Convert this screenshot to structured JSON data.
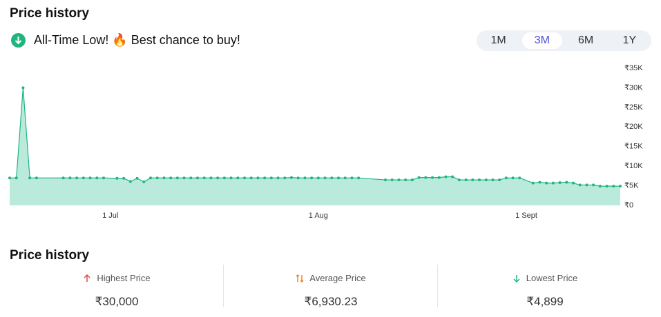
{
  "header": {
    "title": "Price history",
    "banner": "All-Time Low! 🔥 Best chance to buy!"
  },
  "tabs": [
    "1M",
    "3M",
    "6M",
    "1Y"
  ],
  "active_tab": "3M",
  "chart_data": {
    "type": "area",
    "color": "#1fb57f",
    "fill": "#b9eadb",
    "x": [
      "06-16",
      "06-17",
      "06-18",
      "06-19",
      "06-20",
      "06-24",
      "06-25",
      "06-26",
      "06-27",
      "06-28",
      "06-29",
      "06-30",
      "07-02",
      "07-03",
      "07-04",
      "07-05",
      "07-06",
      "07-07",
      "07-08",
      "07-09",
      "07-10",
      "07-11",
      "07-12",
      "07-13",
      "07-14",
      "07-15",
      "07-16",
      "07-17",
      "07-18",
      "07-19",
      "07-20",
      "07-21",
      "07-22",
      "07-23",
      "07-24",
      "07-25",
      "07-26",
      "07-27",
      "07-28",
      "07-29",
      "07-30",
      "07-31",
      "08-01",
      "08-02",
      "08-03",
      "08-04",
      "08-05",
      "08-06",
      "08-07",
      "08-11",
      "08-12",
      "08-13",
      "08-14",
      "08-15",
      "08-16",
      "08-17",
      "08-18",
      "08-19",
      "08-20",
      "08-21",
      "08-22",
      "08-23",
      "08-24",
      "08-25",
      "08-26",
      "08-27",
      "08-28",
      "08-29",
      "08-30",
      "08-31",
      "09-02",
      "09-03",
      "09-04",
      "09-05",
      "09-06",
      "09-07",
      "09-08",
      "09-09",
      "09-10",
      "09-11",
      "09-12",
      "09-13",
      "09-14",
      "09-15"
    ],
    "values": [
      7000,
      7000,
      30000,
      7000,
      7000,
      7000,
      7000,
      7000,
      7000,
      7000,
      7000,
      7000,
      6900,
      6900,
      6100,
      6900,
      6000,
      7000,
      7000,
      7000,
      7000,
      7000,
      7000,
      7000,
      7000,
      7000,
      7000,
      7000,
      7000,
      7000,
      7000,
      7000,
      7000,
      7000,
      7000,
      7000,
      7000,
      7000,
      7100,
      7000,
      7000,
      7000,
      7000,
      7000,
      7000,
      7000,
      7000,
      7000,
      7000,
      6500,
      6500,
      6500,
      6500,
      6500,
      7100,
      7100,
      7100,
      7100,
      7300,
      7300,
      6500,
      6500,
      6500,
      6500,
      6500,
      6500,
      6500,
      7000,
      7000,
      7000,
      5700,
      5900,
      5700,
      5700,
      5800,
      5900,
      5700,
      5200,
      5200,
      5200,
      4899,
      4899,
      4899,
      4899
    ],
    "xlim": [
      "06-16",
      "09-15"
    ],
    "xticks": [
      {
        "value": "07-01",
        "label": "1 Jul"
      },
      {
        "value": "08-01",
        "label": "1 Aug"
      },
      {
        "value": "09-01",
        "label": "1 Sept"
      }
    ],
    "ylim": [
      0,
      35000
    ],
    "yticks": [
      {
        "value": 0,
        "label": "₹0"
      },
      {
        "value": 5000,
        "label": "₹5K"
      },
      {
        "value": 10000,
        "label": "₹10K"
      },
      {
        "value": 15000,
        "label": "₹15K"
      },
      {
        "value": 20000,
        "label": "₹20K"
      },
      {
        "value": 25000,
        "label": "₹25K"
      },
      {
        "value": 30000,
        "label": "₹30K"
      },
      {
        "value": 35000,
        "label": "₹35K"
      }
    ]
  },
  "stats": {
    "title": "Price history",
    "items": [
      {
        "label": "Highest Price",
        "value": "₹30,000"
      },
      {
        "label": "Average Price",
        "value": "₹6,930.23"
      },
      {
        "label": "Lowest Price",
        "value": "₹4,899"
      }
    ]
  }
}
